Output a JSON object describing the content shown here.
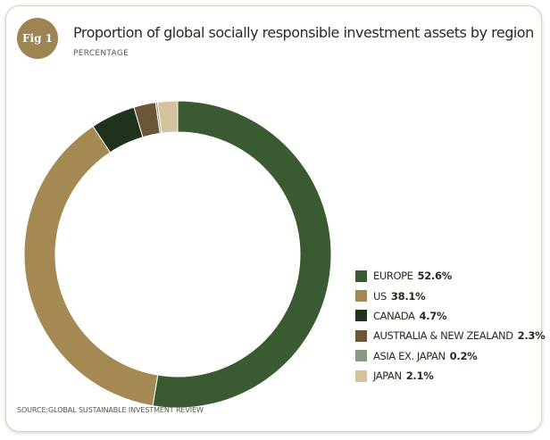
{
  "figure": {
    "badge": "Fig 1",
    "title": "Proportion of global socially responsible investment assets by region",
    "subtitle": "PERCENTAGE",
    "source": "SOURCE:GLOBAL SUSTAINABLE INVESTMENT REVIEW"
  },
  "chart_data": {
    "type": "pie",
    "style": "donut",
    "title": "Proportion of global socially responsible investment assets by region",
    "subtitle": "PERCENTAGE",
    "legend_position": "right",
    "labels": [
      "EUROPE",
      "US",
      "CANADA",
      "AUSTRALIA & NEW ZEALAND",
      "ASIA EX. JAPAN",
      "JAPAN"
    ],
    "values": [
      52.6,
      38.1,
      4.7,
      2.3,
      0.2,
      2.1
    ],
    "value_labels": [
      "52.6%",
      "38.1%",
      "4.7%",
      "2.3%",
      "0.2%",
      "2.1%"
    ],
    "colors": [
      "#3a5a32",
      "#a48a52",
      "#1f331c",
      "#6b5637",
      "#8a9a82",
      "#d3c29b"
    ]
  }
}
